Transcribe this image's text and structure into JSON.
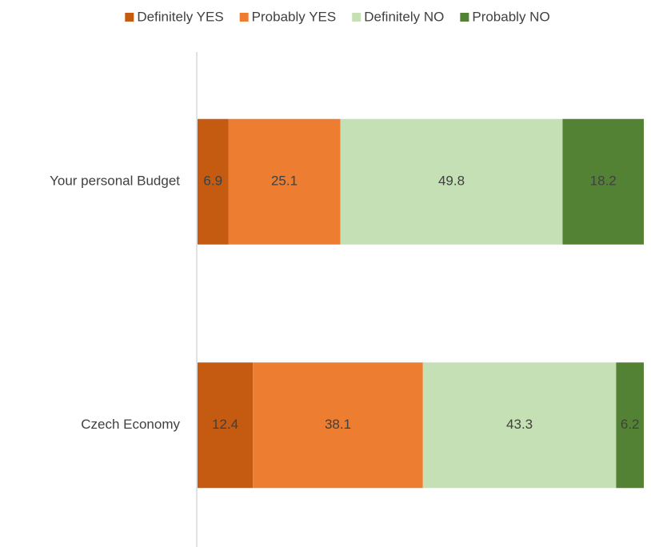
{
  "chart_data": {
    "type": "stacked_barh",
    "categories": [
      "Your personal Budget",
      "Czech Economy"
    ],
    "series": [
      {
        "name": "Definitely YES",
        "color": "#c55a11",
        "values": [
          6.9,
          12.4
        ]
      },
      {
        "name": "Probably YES",
        "color": "#ed7d31",
        "values": [
          25.1,
          38.1
        ]
      },
      {
        "name": "Definitely NO",
        "color": "#c5e0b4",
        "values": [
          49.8,
          43.3
        ]
      },
      {
        "name": "Probably NO",
        "color": "#548235",
        "values": [
          18.2,
          6.2
        ]
      }
    ],
    "xlim": [
      0,
      100
    ],
    "legend": "top"
  }
}
